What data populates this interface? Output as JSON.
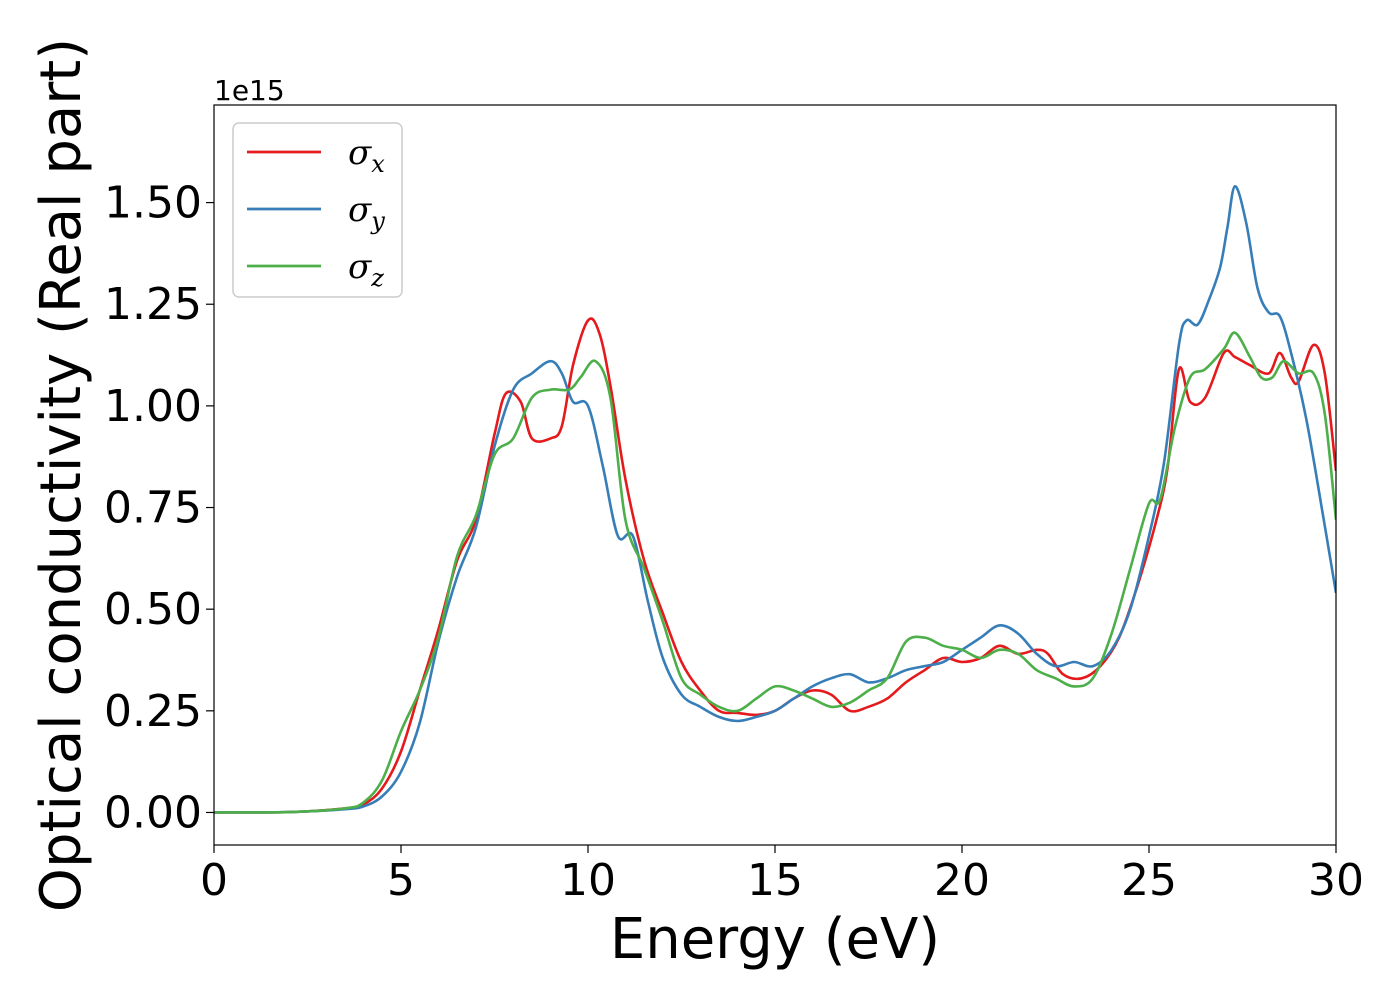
{
  "chart_data": {
    "type": "line",
    "xlabel": "Energy (eV)",
    "ylabel": "Optical conductivity (Real part)",
    "y_offset_label": "1e15",
    "xlim": [
      0,
      30
    ],
    "ylim": [
      -0.08,
      1.74
    ],
    "xticks": [
      0,
      5,
      10,
      15,
      20,
      25,
      30
    ],
    "xtick_labels": [
      "0",
      "5",
      "10",
      "15",
      "20",
      "25",
      "30"
    ],
    "yticks": [
      0.0,
      0.25,
      0.5,
      0.75,
      1.0,
      1.25,
      1.5
    ],
    "ytick_labels": [
      "0.00",
      "0.25",
      "0.50",
      "0.75",
      "1.00",
      "1.25",
      "1.50"
    ],
    "grid": false,
    "legend_position": "top-left",
    "series": [
      {
        "name": "σx",
        "base": "σ",
        "sub": "x",
        "color": "#e41a1c",
        "x": [
          0,
          2,
          3.5,
          4,
          4.5,
          5,
          5.5,
          6,
          6.5,
          7,
          7.5,
          7.8,
          8.2,
          8.5,
          9,
          9.3,
          9.6,
          10,
          10.3,
          10.6,
          11,
          11.5,
          12,
          12.5,
          13,
          13.5,
          14,
          14.5,
          15,
          15.5,
          16,
          16.5,
          17,
          17.5,
          18,
          18.5,
          19,
          19.5,
          20,
          20.5,
          21,
          21.5,
          22,
          22.3,
          22.7,
          23.2,
          23.7,
          24.2,
          24.7,
          25.2,
          25.5,
          25.8,
          26.1,
          26.5,
          27,
          27.3,
          27.7,
          28.2,
          28.5,
          28.8,
          29,
          29.4,
          29.7,
          30
        ],
        "y": [
          0.0,
          0.001,
          0.01,
          0.02,
          0.06,
          0.15,
          0.3,
          0.45,
          0.62,
          0.72,
          0.93,
          1.03,
          1.01,
          0.92,
          0.92,
          0.95,
          1.1,
          1.21,
          1.18,
          1.05,
          0.82,
          0.62,
          0.49,
          0.37,
          0.3,
          0.25,
          0.245,
          0.24,
          0.25,
          0.28,
          0.3,
          0.29,
          0.25,
          0.26,
          0.28,
          0.32,
          0.35,
          0.38,
          0.37,
          0.38,
          0.41,
          0.39,
          0.4,
          0.39,
          0.34,
          0.33,
          0.36,
          0.43,
          0.56,
          0.72,
          0.85,
          1.09,
          1.01,
          1.02,
          1.13,
          1.12,
          1.1,
          1.08,
          1.13,
          1.07,
          1.06,
          1.15,
          1.08,
          0.84
        ]
      },
      {
        "name": "σy",
        "base": "σ",
        "sub": "y",
        "color": "#377eb8",
        "x": [
          0,
          2,
          3.5,
          4,
          4.5,
          5,
          5.5,
          6,
          6.5,
          7,
          7.5,
          8,
          8.5,
          9,
          9.3,
          9.6,
          10,
          10.4,
          10.8,
          11.2,
          11.6,
          12,
          12.5,
          13,
          13.5,
          14,
          14.5,
          15,
          15.5,
          16,
          16.5,
          17,
          17.5,
          18,
          18.5,
          19,
          19.5,
          20,
          20.5,
          21,
          21.5,
          22,
          22.5,
          23,
          23.5,
          24,
          24.5,
          25,
          25.4,
          25.8,
          26,
          26.3,
          26.6,
          26.9,
          27.1,
          27.3,
          27.6,
          27.9,
          28.2,
          28.5,
          28.8,
          29.2,
          29.6,
          30
        ],
        "y": [
          0.0,
          0.001,
          0.008,
          0.015,
          0.04,
          0.1,
          0.22,
          0.42,
          0.58,
          0.7,
          0.9,
          1.04,
          1.08,
          1.11,
          1.08,
          1.01,
          1.0,
          0.85,
          0.68,
          0.68,
          0.52,
          0.38,
          0.29,
          0.26,
          0.235,
          0.225,
          0.235,
          0.25,
          0.28,
          0.31,
          0.33,
          0.34,
          0.32,
          0.33,
          0.35,
          0.36,
          0.37,
          0.4,
          0.43,
          0.46,
          0.44,
          0.39,
          0.36,
          0.37,
          0.36,
          0.4,
          0.5,
          0.68,
          0.86,
          1.15,
          1.21,
          1.2,
          1.26,
          1.34,
          1.44,
          1.54,
          1.45,
          1.29,
          1.23,
          1.22,
          1.13,
          0.97,
          0.76,
          0.54
        ]
      },
      {
        "name": "σz",
        "base": "σ",
        "sub": "z",
        "color": "#4daf4a",
        "x": [
          0,
          2,
          3.5,
          4,
          4.5,
          5,
          5.5,
          6,
          6.5,
          7,
          7.5,
          8,
          8.5,
          9,
          9.5,
          9.8,
          10.2,
          10.6,
          11,
          11.5,
          12,
          12.5,
          13,
          13.5,
          14,
          14.5,
          15,
          15.5,
          16,
          16.5,
          17,
          17.5,
          18,
          18.5,
          19,
          19.5,
          20,
          20.5,
          21,
          21.5,
          22,
          22.5,
          23,
          23.5,
          24,
          24.5,
          25,
          25.3,
          25.7,
          26.1,
          26.5,
          27,
          27.3,
          27.7,
          28,
          28.3,
          28.6,
          29,
          29.4,
          29.7,
          30
        ],
        "y": [
          0.0,
          0.001,
          0.01,
          0.025,
          0.08,
          0.2,
          0.3,
          0.43,
          0.63,
          0.73,
          0.88,
          0.92,
          1.02,
          1.04,
          1.04,
          1.07,
          1.11,
          1.02,
          0.72,
          0.6,
          0.47,
          0.33,
          0.29,
          0.26,
          0.25,
          0.28,
          0.31,
          0.3,
          0.28,
          0.26,
          0.27,
          0.3,
          0.33,
          0.42,
          0.43,
          0.41,
          0.4,
          0.38,
          0.4,
          0.39,
          0.35,
          0.33,
          0.31,
          0.33,
          0.44,
          0.6,
          0.76,
          0.77,
          0.95,
          1.07,
          1.09,
          1.14,
          1.18,
          1.12,
          1.07,
          1.07,
          1.11,
          1.08,
          1.08,
          0.98,
          0.72
        ]
      }
    ]
  }
}
